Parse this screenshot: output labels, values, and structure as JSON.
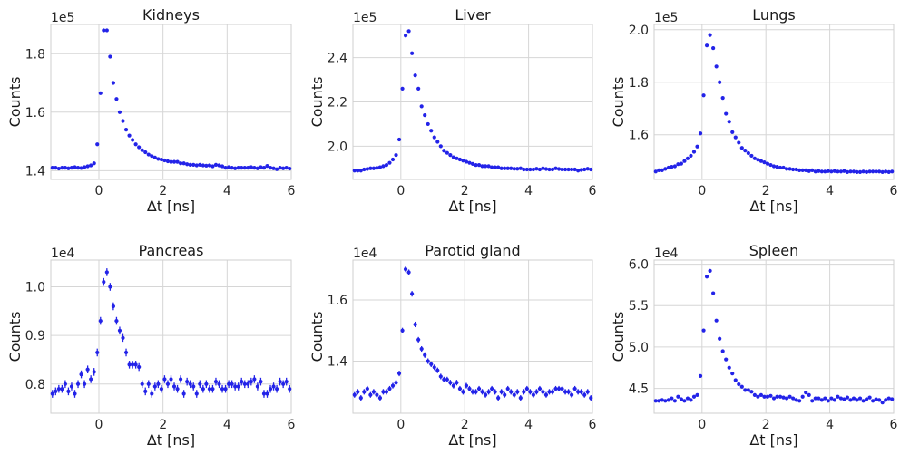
{
  "chart_data": [
    {
      "type": "scatter",
      "title": "Kidneys",
      "xlabel": "Δt [ns]",
      "ylabel": "Counts",
      "multiplier": "1e5",
      "xlim": [
        -1.5,
        6
      ],
      "ylim": [
        1.37,
        1.9
      ],
      "xticks": [
        0,
        2,
        4,
        6
      ],
      "yticks": [
        1.4,
        1.6,
        1.8
      ],
      "yticklabels": [
        "1.4",
        "1.6",
        "1.8"
      ],
      "grid": true,
      "error_bars": false,
      "marker_color": "#2323e8",
      "x": [
        -1.45,
        -1.35,
        -1.25,
        -1.15,
        -1.05,
        -0.95,
        -0.85,
        -0.75,
        -0.65,
        -0.55,
        -0.45,
        -0.35,
        -0.25,
        -0.15,
        -0.05,
        0.05,
        0.15,
        0.25,
        0.35,
        0.45,
        0.55,
        0.65,
        0.75,
        0.85,
        0.95,
        1.05,
        1.15,
        1.25,
        1.35,
        1.45,
        1.55,
        1.65,
        1.75,
        1.85,
        1.95,
        2.05,
        2.15,
        2.25,
        2.35,
        2.45,
        2.55,
        2.65,
        2.75,
        2.85,
        2.95,
        3.05,
        3.15,
        3.25,
        3.35,
        3.45,
        3.55,
        3.65,
        3.75,
        3.85,
        3.95,
        4.05,
        4.15,
        4.25,
        4.35,
        4.45,
        4.55,
        4.65,
        4.75,
        4.85,
        4.95,
        5.05,
        5.15,
        5.25,
        5.35,
        5.45,
        5.55,
        5.65,
        5.75,
        5.85,
        5.95
      ],
      "y": [
        1.41,
        1.41,
        1.407,
        1.41,
        1.41,
        1.408,
        1.41,
        1.412,
        1.41,
        1.409,
        1.412,
        1.415,
        1.418,
        1.425,
        1.49,
        1.665,
        1.88,
        1.88,
        1.79,
        1.7,
        1.645,
        1.6,
        1.57,
        1.54,
        1.52,
        1.505,
        1.49,
        1.48,
        1.47,
        1.463,
        1.455,
        1.45,
        1.445,
        1.44,
        1.438,
        1.435,
        1.432,
        1.43,
        1.43,
        1.43,
        1.425,
        1.425,
        1.422,
        1.42,
        1.42,
        1.418,
        1.42,
        1.418,
        1.417,
        1.418,
        1.415,
        1.42,
        1.418,
        1.415,
        1.41,
        1.412,
        1.41,
        1.408,
        1.41,
        1.41,
        1.41,
        1.41,
        1.412,
        1.41,
        1.408,
        1.412,
        1.41,
        1.416,
        1.41,
        1.408,
        1.405,
        1.41,
        1.408,
        1.41,
        1.407
      ]
    },
    {
      "type": "scatter",
      "title": "Liver",
      "xlabel": "Δt [ns]",
      "ylabel": "Counts",
      "multiplier": "1e5",
      "xlim": [
        -1.5,
        6
      ],
      "ylim": [
        1.85,
        2.55
      ],
      "xticks": [
        0,
        2,
        4,
        6
      ],
      "yticks": [
        2.0,
        2.2,
        2.4
      ],
      "yticklabels": [
        "2.0",
        "2.2",
        "2.4"
      ],
      "grid": true,
      "error_bars": false,
      "marker_color": "#2323e8",
      "x": [
        -1.45,
        -1.35,
        -1.25,
        -1.15,
        -1.05,
        -0.95,
        -0.85,
        -0.75,
        -0.65,
        -0.55,
        -0.45,
        -0.35,
        -0.25,
        -0.15,
        -0.05,
        0.05,
        0.15,
        0.25,
        0.35,
        0.45,
        0.55,
        0.65,
        0.75,
        0.85,
        0.95,
        1.05,
        1.15,
        1.25,
        1.35,
        1.45,
        1.55,
        1.65,
        1.75,
        1.85,
        1.95,
        2.05,
        2.15,
        2.25,
        2.35,
        2.45,
        2.55,
        2.65,
        2.75,
        2.85,
        2.95,
        3.05,
        3.15,
        3.25,
        3.35,
        3.45,
        3.55,
        3.65,
        3.75,
        3.85,
        3.95,
        4.05,
        4.15,
        4.25,
        4.35,
        4.45,
        4.55,
        4.65,
        4.75,
        4.85,
        4.95,
        5.05,
        5.15,
        5.25,
        5.35,
        5.45,
        5.55,
        5.65,
        5.75,
        5.85,
        5.95
      ],
      "y": [
        1.89,
        1.89,
        1.89,
        1.895,
        1.897,
        1.9,
        1.9,
        1.902,
        1.905,
        1.91,
        1.915,
        1.925,
        1.94,
        1.96,
        2.03,
        2.26,
        2.5,
        2.52,
        2.42,
        2.32,
        2.26,
        2.18,
        2.14,
        2.1,
        2.07,
        2.04,
        2.02,
        2.0,
        1.98,
        1.97,
        1.96,
        1.95,
        1.945,
        1.94,
        1.935,
        1.93,
        1.925,
        1.92,
        1.915,
        1.915,
        1.91,
        1.91,
        1.91,
        1.905,
        1.905,
        1.905,
        1.9,
        1.9,
        1.9,
        1.9,
        1.898,
        1.898,
        1.9,
        1.895,
        1.895,
        1.895,
        1.895,
        1.898,
        1.895,
        1.9,
        1.897,
        1.895,
        1.895,
        1.9,
        1.897,
        1.895,
        1.895,
        1.895,
        1.895,
        1.895,
        1.89,
        1.893,
        1.895,
        1.898,
        1.895
      ]
    },
    {
      "type": "scatter",
      "title": "Lungs",
      "xlabel": "Δt [ns]",
      "ylabel": "Counts",
      "multiplier": "1e5",
      "xlim": [
        -1.5,
        6
      ],
      "ylim": [
        1.43,
        2.02
      ],
      "xticks": [
        0,
        2,
        4,
        6
      ],
      "yticks": [
        1.6,
        1.8,
        2.0
      ],
      "yticklabels": [
        "1.6",
        "1.8",
        "2.0"
      ],
      "grid": true,
      "error_bars": false,
      "marker_color": "#2323e8",
      "x": [
        -1.45,
        -1.35,
        -1.25,
        -1.15,
        -1.05,
        -0.95,
        -0.85,
        -0.75,
        -0.65,
        -0.55,
        -0.45,
        -0.35,
        -0.25,
        -0.15,
        -0.05,
        0.05,
        0.15,
        0.25,
        0.35,
        0.45,
        0.55,
        0.65,
        0.75,
        0.85,
        0.95,
        1.05,
        1.15,
        1.25,
        1.35,
        1.45,
        1.55,
        1.65,
        1.75,
        1.85,
        1.95,
        2.05,
        2.15,
        2.25,
        2.35,
        2.45,
        2.55,
        2.65,
        2.75,
        2.85,
        2.95,
        3.05,
        3.15,
        3.25,
        3.35,
        3.45,
        3.55,
        3.65,
        3.75,
        3.85,
        3.95,
        4.05,
        4.15,
        4.25,
        4.35,
        4.45,
        4.55,
        4.65,
        4.75,
        4.85,
        4.95,
        5.05,
        5.15,
        5.25,
        5.35,
        5.45,
        5.55,
        5.65,
        5.75,
        5.85,
        5.95
      ],
      "y": [
        1.46,
        1.465,
        1.465,
        1.47,
        1.475,
        1.478,
        1.48,
        1.488,
        1.49,
        1.5,
        1.51,
        1.52,
        1.535,
        1.555,
        1.605,
        1.75,
        1.94,
        1.98,
        1.93,
        1.86,
        1.8,
        1.74,
        1.68,
        1.65,
        1.61,
        1.59,
        1.57,
        1.55,
        1.54,
        1.53,
        1.52,
        1.51,
        1.505,
        1.5,
        1.495,
        1.49,
        1.485,
        1.48,
        1.478,
        1.475,
        1.475,
        1.47,
        1.47,
        1.468,
        1.468,
        1.465,
        1.465,
        1.465,
        1.462,
        1.465,
        1.46,
        1.462,
        1.46,
        1.46,
        1.462,
        1.46,
        1.462,
        1.46,
        1.46,
        1.462,
        1.458,
        1.46,
        1.46,
        1.458,
        1.458,
        1.46,
        1.458,
        1.46,
        1.46,
        1.46,
        1.46,
        1.458,
        1.46,
        1.458,
        1.46
      ]
    },
    {
      "type": "scatter",
      "title": "Pancreas",
      "xlabel": "Δt [ns]",
      "ylabel": "Counts",
      "multiplier": "1e4",
      "xlim": [
        -1.5,
        6
      ],
      "ylim": [
        0.74,
        1.055
      ],
      "xticks": [
        0,
        2,
        4,
        6
      ],
      "yticks": [
        0.8,
        0.9,
        1.0
      ],
      "yticklabels": [
        "0.8",
        "0.9",
        "1.0"
      ],
      "grid": true,
      "error_bars": true,
      "error": 0.008,
      "marker_color": "#2323e8",
      "x": [
        -1.45,
        -1.35,
        -1.25,
        -1.15,
        -1.05,
        -0.95,
        -0.85,
        -0.75,
        -0.65,
        -0.55,
        -0.45,
        -0.35,
        -0.25,
        -0.15,
        -0.05,
        0.05,
        0.15,
        0.25,
        0.35,
        0.45,
        0.55,
        0.65,
        0.75,
        0.85,
        0.95,
        1.05,
        1.15,
        1.25,
        1.35,
        1.45,
        1.55,
        1.65,
        1.75,
        1.85,
        1.95,
        2.05,
        2.15,
        2.25,
        2.35,
        2.45,
        2.55,
        2.65,
        2.75,
        2.85,
        2.95,
        3.05,
        3.15,
        3.25,
        3.35,
        3.45,
        3.55,
        3.65,
        3.75,
        3.85,
        3.95,
        4.05,
        4.15,
        4.25,
        4.35,
        4.45,
        4.55,
        4.65,
        4.75,
        4.85,
        4.95,
        5.05,
        5.15,
        5.25,
        5.35,
        5.45,
        5.55,
        5.65,
        5.75,
        5.85,
        5.95
      ],
      "y": [
        0.78,
        0.785,
        0.79,
        0.79,
        0.8,
        0.785,
        0.795,
        0.78,
        0.8,
        0.82,
        0.8,
        0.83,
        0.81,
        0.825,
        0.865,
        0.93,
        1.01,
        1.03,
        1.0,
        0.96,
        0.93,
        0.91,
        0.895,
        0.865,
        0.84,
        0.84,
        0.84,
        0.835,
        0.8,
        0.785,
        0.8,
        0.78,
        0.795,
        0.8,
        0.79,
        0.81,
        0.8,
        0.81,
        0.795,
        0.79,
        0.81,
        0.78,
        0.805,
        0.8,
        0.795,
        0.78,
        0.8,
        0.79,
        0.8,
        0.79,
        0.79,
        0.805,
        0.8,
        0.79,
        0.79,
        0.8,
        0.8,
        0.795,
        0.795,
        0.805,
        0.8,
        0.8,
        0.805,
        0.81,
        0.795,
        0.805,
        0.78,
        0.78,
        0.79,
        0.795,
        0.79,
        0.805,
        0.8,
        0.805,
        0.79
      ]
    },
    {
      "type": "scatter",
      "title": "Parotid gland",
      "xlabel": "Δt [ns]",
      "ylabel": "Counts",
      "multiplier": "1e4",
      "xlim": [
        -1.5,
        6
      ],
      "ylim": [
        1.23,
        1.73
      ],
      "xticks": [
        0,
        2,
        4,
        6
      ],
      "yticks": [
        1.4,
        1.6
      ],
      "yticklabels": [
        "1.4",
        "1.6"
      ],
      "grid": true,
      "error_bars": true,
      "error": 0.009,
      "marker_color": "#2323e8",
      "x": [
        -1.45,
        -1.35,
        -1.25,
        -1.15,
        -1.05,
        -0.95,
        -0.85,
        -0.75,
        -0.65,
        -0.55,
        -0.45,
        -0.35,
        -0.25,
        -0.15,
        -0.05,
        0.05,
        0.15,
        0.25,
        0.35,
        0.45,
        0.55,
        0.65,
        0.75,
        0.85,
        0.95,
        1.05,
        1.15,
        1.25,
        1.35,
        1.45,
        1.55,
        1.65,
        1.75,
        1.85,
        1.95,
        2.05,
        2.15,
        2.25,
        2.35,
        2.45,
        2.55,
        2.65,
        2.75,
        2.85,
        2.95,
        3.05,
        3.15,
        3.25,
        3.35,
        3.45,
        3.55,
        3.65,
        3.75,
        3.85,
        3.95,
        4.05,
        4.15,
        4.25,
        4.35,
        4.45,
        4.55,
        4.65,
        4.75,
        4.85,
        4.95,
        5.05,
        5.15,
        5.25,
        5.35,
        5.45,
        5.55,
        5.65,
        5.75,
        5.85,
        5.95
      ],
      "y": [
        1.29,
        1.3,
        1.28,
        1.3,
        1.31,
        1.29,
        1.3,
        1.29,
        1.28,
        1.3,
        1.3,
        1.31,
        1.32,
        1.33,
        1.36,
        1.5,
        1.7,
        1.69,
        1.62,
        1.52,
        1.47,
        1.44,
        1.42,
        1.4,
        1.39,
        1.38,
        1.37,
        1.35,
        1.34,
        1.34,
        1.33,
        1.32,
        1.33,
        1.31,
        1.3,
        1.32,
        1.31,
        1.3,
        1.3,
        1.31,
        1.3,
        1.29,
        1.3,
        1.31,
        1.3,
        1.28,
        1.3,
        1.29,
        1.31,
        1.3,
        1.29,
        1.3,
        1.28,
        1.3,
        1.31,
        1.3,
        1.29,
        1.3,
        1.31,
        1.3,
        1.29,
        1.3,
        1.3,
        1.31,
        1.31,
        1.31,
        1.3,
        1.3,
        1.29,
        1.31,
        1.3,
        1.3,
        1.29,
        1.3,
        1.28
      ]
    },
    {
      "type": "scatter",
      "title": "Spleen",
      "xlabel": "Δt [ns]",
      "ylabel": "Counts",
      "multiplier": "1e4",
      "xlim": [
        -1.5,
        6
      ],
      "ylim": [
        4.2,
        6.05
      ],
      "xticks": [
        0,
        2,
        4,
        6
      ],
      "yticks": [
        4.5,
        5.0,
        5.5,
        6.0
      ],
      "yticklabels": [
        "4.5",
        "5.0",
        "5.5",
        "6.0"
      ],
      "grid": true,
      "error_bars": false,
      "marker_color": "#2323e8",
      "x": [
        -1.45,
        -1.35,
        -1.25,
        -1.15,
        -1.05,
        -0.95,
        -0.85,
        -0.75,
        -0.65,
        -0.55,
        -0.45,
        -0.35,
        -0.25,
        -0.15,
        -0.05,
        0.05,
        0.15,
        0.25,
        0.35,
        0.45,
        0.55,
        0.65,
        0.75,
        0.85,
        0.95,
        1.05,
        1.15,
        1.25,
        1.35,
        1.45,
        1.55,
        1.65,
        1.75,
        1.85,
        1.95,
        2.05,
        2.15,
        2.25,
        2.35,
        2.45,
        2.55,
        2.65,
        2.75,
        2.85,
        2.95,
        3.05,
        3.15,
        3.25,
        3.35,
        3.45,
        3.55,
        3.65,
        3.75,
        3.85,
        3.95,
        4.05,
        4.15,
        4.25,
        4.35,
        4.45,
        4.55,
        4.65,
        4.75,
        4.85,
        4.95,
        5.05,
        5.15,
        5.25,
        5.35,
        5.45,
        5.55,
        5.65,
        5.75,
        5.85,
        5.95
      ],
      "y": [
        4.35,
        4.35,
        4.36,
        4.35,
        4.36,
        4.38,
        4.35,
        4.4,
        4.37,
        4.35,
        4.38,
        4.36,
        4.4,
        4.42,
        4.65,
        5.2,
        5.85,
        5.92,
        5.65,
        5.32,
        5.1,
        4.95,
        4.85,
        4.75,
        4.68,
        4.6,
        4.55,
        4.52,
        4.48,
        4.48,
        4.46,
        4.42,
        4.4,
        4.42,
        4.4,
        4.4,
        4.41,
        4.38,
        4.4,
        4.4,
        4.39,
        4.38,
        4.4,
        4.38,
        4.36,
        4.35,
        4.4,
        4.45,
        4.42,
        4.35,
        4.38,
        4.38,
        4.36,
        4.38,
        4.35,
        4.38,
        4.36,
        4.4,
        4.38,
        4.37,
        4.39,
        4.36,
        4.38,
        4.36,
        4.38,
        4.35,
        4.37,
        4.39,
        4.35,
        4.37,
        4.36,
        4.33,
        4.36,
        4.38,
        4.37
      ]
    }
  ]
}
